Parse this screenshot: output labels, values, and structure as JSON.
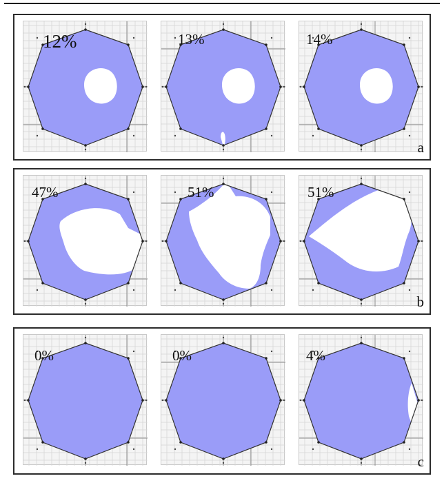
{
  "colors": {
    "fill": "#9a9cf8",
    "hole": "#ffffff",
    "grid_minor": "#d6d6d6",
    "grid_major": "#8c8c8c",
    "outline": "#333333"
  },
  "rows": [
    {
      "label": "a",
      "panels": [
        {
          "percent": "12%",
          "hole": "round"
        },
        {
          "percent": "13%",
          "hole": "round"
        },
        {
          "percent": "14%",
          "hole": "round"
        }
      ]
    },
    {
      "label": "b",
      "panels": [
        {
          "percent": "47%",
          "hole": "large-open-right"
        },
        {
          "percent": "51%",
          "hole": "large-open-top"
        },
        {
          "percent": "51%",
          "hole": "wedge-open-right"
        }
      ]
    },
    {
      "label": "c",
      "panels": [
        {
          "percent": "0%",
          "hole": "none"
        },
        {
          "percent": "0%",
          "hole": "none"
        },
        {
          "percent": "4%",
          "hole": "edge-right"
        }
      ]
    }
  ]
}
